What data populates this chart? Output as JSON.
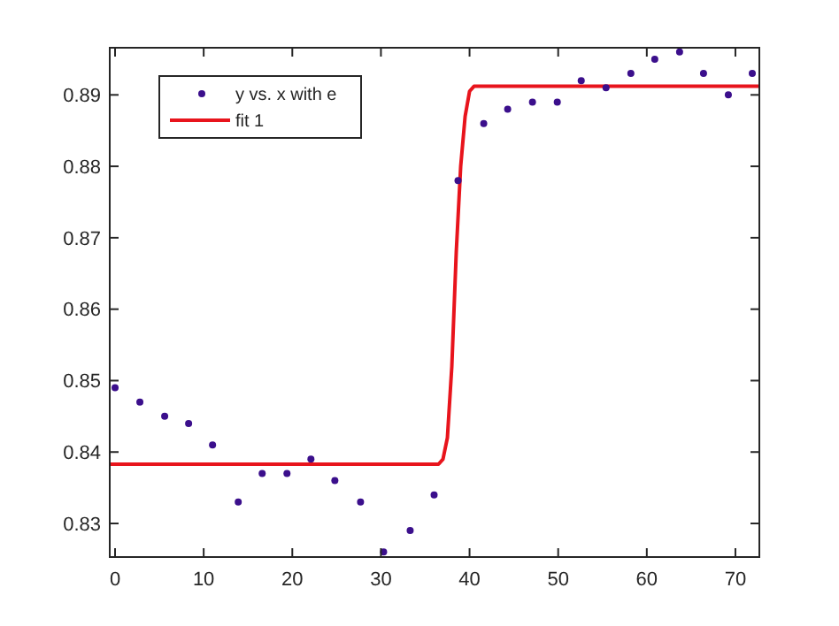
{
  "chart_data": {
    "type": "scatter",
    "xlim": [
      -0.6,
      72.7
    ],
    "ylim": [
      0.8253,
      0.8966
    ],
    "xticks": [
      0,
      10,
      20,
      30,
      40,
      50,
      60,
      70
    ],
    "yticks": [
      0.83,
      0.84,
      0.85,
      0.86,
      0.87,
      0.88,
      0.89
    ],
    "grid": false,
    "legend": "top left",
    "series": [
      {
        "name": "y vs. x with e",
        "marker": "circle",
        "color": "#3b0f8c",
        "x": [
          0,
          2.8,
          5.6,
          8.3,
          11.0,
          13.9,
          16.6,
          19.4,
          22.1,
          24.8,
          27.7,
          30.3,
          33.3,
          36.0,
          38.7,
          41.6,
          44.3,
          47.1,
          49.9,
          52.6,
          55.4,
          58.2,
          60.9,
          63.7,
          66.4,
          69.2,
          71.9
        ],
        "values": [
          0.849,
          0.847,
          0.845,
          0.844,
          0.841,
          0.833,
          0.837,
          0.837,
          0.839,
          0.836,
          0.833,
          0.826,
          0.829,
          0.834,
          0.878,
          0.886,
          0.888,
          0.889,
          0.889,
          0.892,
          0.891,
          0.893,
          0.895,
          0.896,
          0.893,
          0.89,
          0.893
        ]
      },
      {
        "name": "fit 1",
        "type": "line",
        "marker": "none",
        "line_style": "solid",
        "color": "#e8141c",
        "x": [
          -0.6,
          36.5,
          37,
          37.5,
          38,
          38.5,
          39,
          39.5,
          40,
          40.5,
          72.7
        ],
        "values": [
          0.8383,
          0.8383,
          0.839,
          0.842,
          0.852,
          0.868,
          0.88,
          0.887,
          0.8905,
          0.8912,
          0.8912
        ]
      }
    ]
  }
}
